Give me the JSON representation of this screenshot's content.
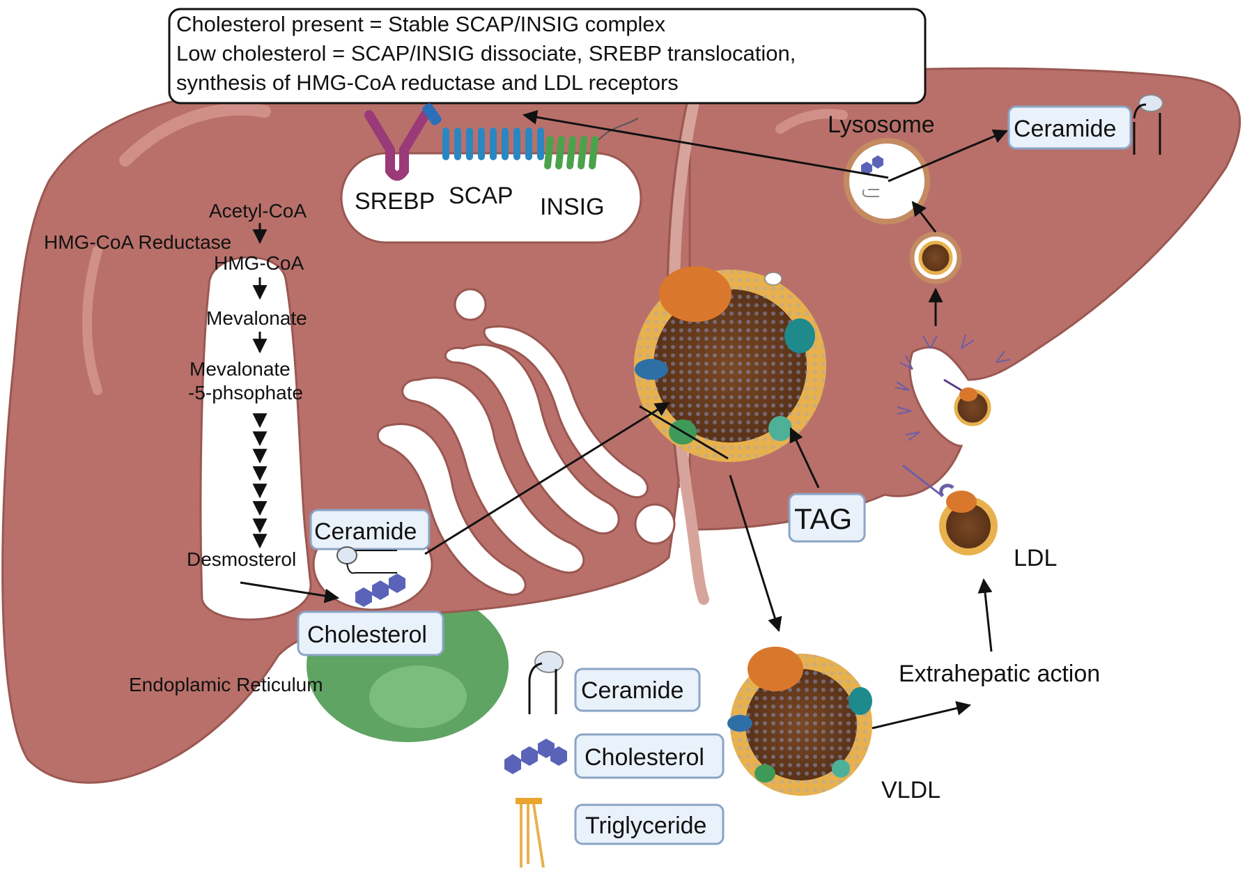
{
  "note": {
    "line1": "Cholesterol present =  Stable SCAP/INSIG complex",
    "line2": "Low cholesterol = SCAP/INSIG dissociate, SREBP translocation,",
    "line3": "synthesis of HMG-CoA reductase and LDL receptors"
  },
  "proteins": {
    "srebp": "SREBP",
    "scap": "SCAP",
    "insig": "INSIG"
  },
  "pathway": {
    "acetyl_coa": "Acetyl-CoA",
    "enzyme": "HMG-CoA Reductase",
    "hmg_coa": "HMG-CoA",
    "mevalonate": "Mevalonate",
    "mev5p_a": "Mevalonate",
    "mev5p_b": "-5-phsophate",
    "desmosterol": "Desmosterol"
  },
  "er_label": "Endoplamic Reticulum",
  "er_boxes": {
    "ceramide": "Ceramide",
    "cholesterol": "Cholesterol"
  },
  "lysosome": "Lysosome",
  "lysosome_product": "Ceramide",
  "tag": "TAG",
  "ldl": "LDL",
  "vldl": "VLDL",
  "extrahepatic": "Extrahepatic  action",
  "legend": [
    {
      "icon": "ceramide-icon",
      "label": "Ceramide"
    },
    {
      "icon": "cholesterol-icon",
      "label": "Cholesterol"
    },
    {
      "icon": "triglyceride-icon",
      "label": "Triglyceride"
    }
  ],
  "colors": {
    "liver": "#b9706a",
    "liver_highlight": "#d08f88",
    "gallbladder": "#5fa463",
    "lipoprotein_core": "#6b3d1f",
    "lipoprotein_shell": "#e8b14d",
    "apo_orange": "#d9782d",
    "srebp": "#9a3a78",
    "scap": "#2a87c2",
    "insig": "#4aa34a",
    "box_fill": "#e9f1fb",
    "box_stroke": "#8aa4c4"
  }
}
